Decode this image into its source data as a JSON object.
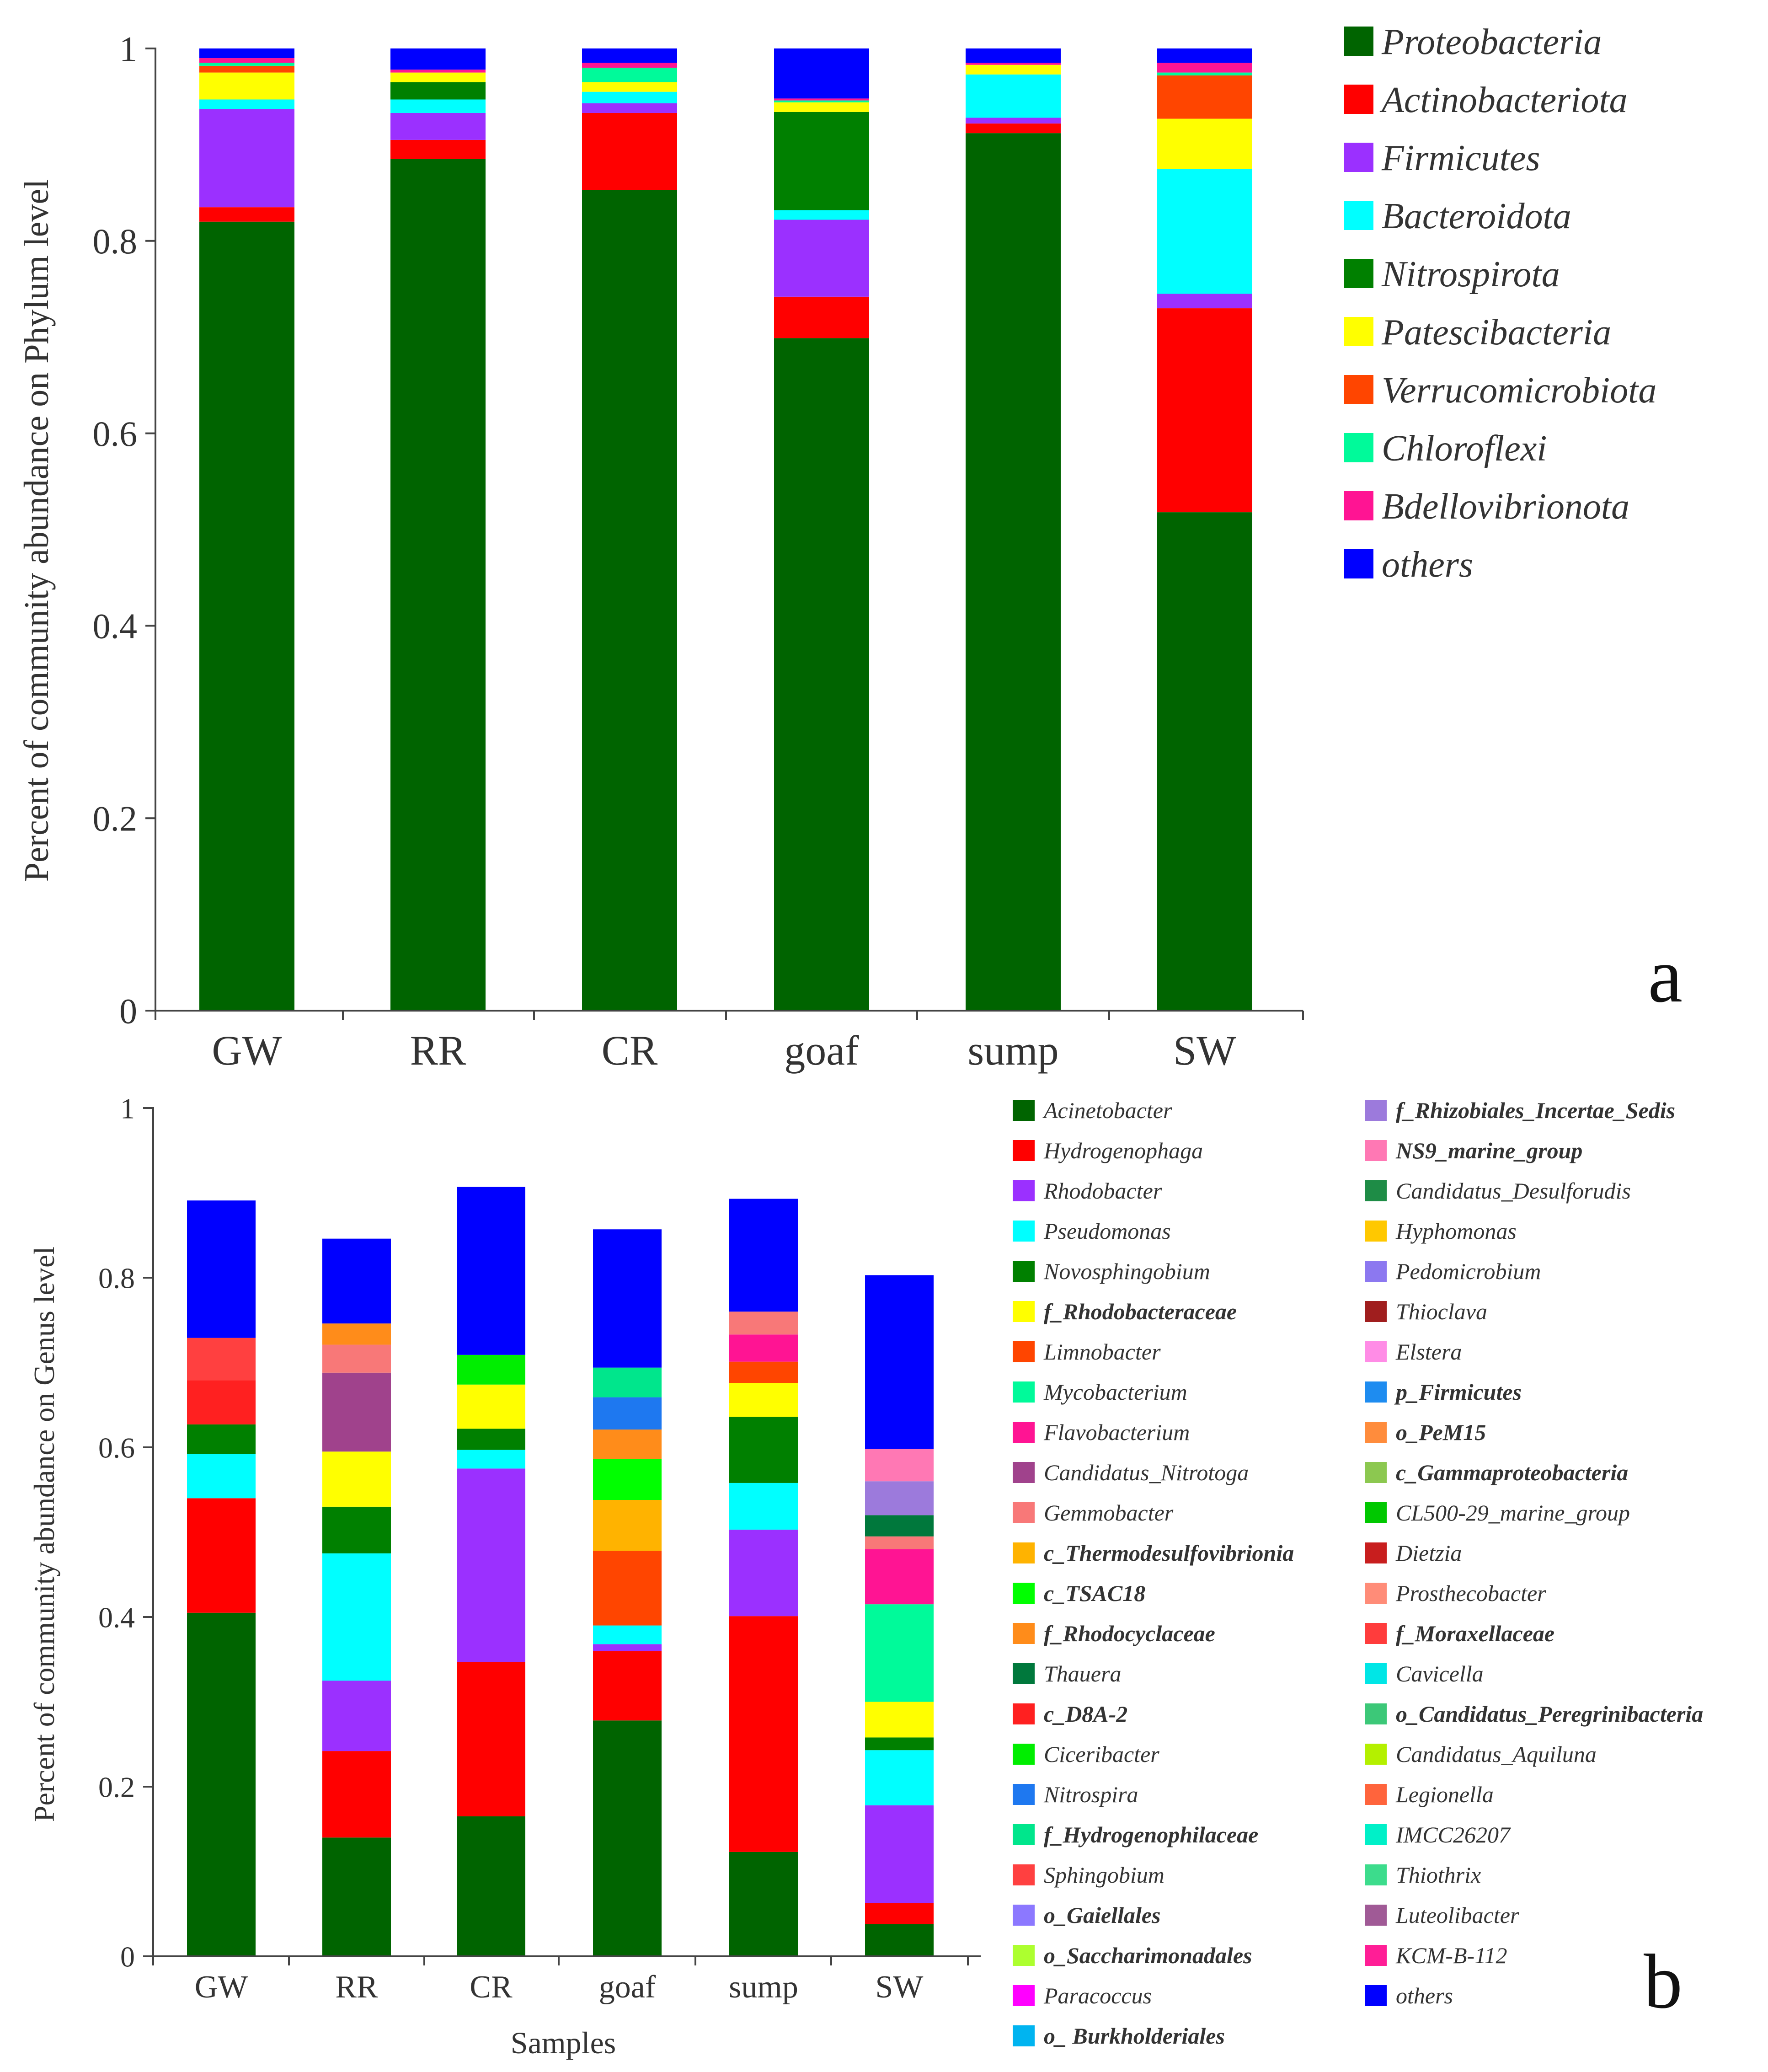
{
  "chart_data": [
    {
      "type": "stacked-bar",
      "panel_label": "a",
      "ylabel": "Percent of community abundance on Phylum level",
      "xlabel": "",
      "ylim": [
        0,
        1
      ],
      "yticks": [
        "0",
        "0.2",
        "0.4",
        "0.6",
        "0.8",
        "1"
      ],
      "ytick_values": [
        0,
        0.2,
        0.4,
        0.6,
        0.8,
        1
      ],
      "categories": [
        "GW",
        "RR",
        "CR",
        "goaf",
        "sump",
        "SW"
      ],
      "legend_position": "right",
      "series": [
        {
          "name": "Proteobacteria",
          "color": "#006400",
          "values": [
            0.82,
            0.885,
            0.853,
            0.699,
            0.912,
            0.518
          ]
        },
        {
          "name": "Actinobacteriota",
          "color": "#FF0000",
          "values": [
            0.015,
            0.02,
            0.08,
            0.043,
            0.01,
            0.212
          ]
        },
        {
          "name": "Firmicutes",
          "color": "#9B30FF",
          "values": [
            0.102,
            0.028,
            0.01,
            0.08,
            0.006,
            0.015
          ]
        },
        {
          "name": "Bacteroidota",
          "color": "#00FFFF",
          "values": [
            0.01,
            0.014,
            0.012,
            0.01,
            0.045,
            0.13
          ]
        },
        {
          "name": "Nitrospirota",
          "color": "#008000",
          "values": [
            0.0,
            0.018,
            0.0,
            0.102,
            0.0,
            0.0
          ]
        },
        {
          "name": "Patescibacteria",
          "color": "#FFFF00",
          "values": [
            0.028,
            0.01,
            0.01,
            0.01,
            0.01,
            0.052
          ]
        },
        {
          "name": "Verrucomicrobiota",
          "color": "#FF4500",
          "values": [
            0.007,
            0.0,
            0.0,
            0.0,
            0.0,
            0.045
          ]
        },
        {
          "name": "Chloroflexi",
          "color": "#00FA9A",
          "values": [
            0.003,
            0.0,
            0.015,
            0.002,
            0.0,
            0.003
          ]
        },
        {
          "name": "Bdellovibrionota",
          "color": "#FF1493",
          "values": [
            0.005,
            0.003,
            0.005,
            0.002,
            0.002,
            0.01
          ]
        },
        {
          "name": "others",
          "color": "#0000FF",
          "values": [
            0.01,
            0.022,
            0.015,
            0.052,
            0.015,
            0.015
          ]
        }
      ]
    },
    {
      "type": "stacked-bar",
      "panel_label": "b",
      "ylabel": "Percent of community abundance on Genus level",
      "xlabel": "Samples",
      "ylim": [
        0,
        1
      ],
      "yticks": [
        "0",
        "0.2",
        "0.4",
        "0.6",
        "0.8",
        "1"
      ],
      "ytick_values": [
        0,
        0.2,
        0.4,
        0.6,
        0.8,
        1
      ],
      "categories": [
        "GW",
        "RR",
        "CR",
        "goaf",
        "sump",
        "SW"
      ],
      "legend_position": "right",
      "series": [
        {
          "name": "Acinetobacter",
          "color": "#006400",
          "bold": false,
          "values": [
            0.405,
            0.14,
            0.165,
            0.278,
            0.123,
            0.038
          ]
        },
        {
          "name": "Hydrogenophaga",
          "color": "#FF0000",
          "bold": false,
          "values": [
            0.135,
            0.102,
            0.182,
            0.082,
            0.278,
            0.025
          ]
        },
        {
          "name": "Rhodobacter",
          "color": "#9B30FF",
          "bold": false,
          "values": [
            0.0,
            0.083,
            0.228,
            0.008,
            0.102,
            0.115
          ]
        },
        {
          "name": "Pseudomonas",
          "color": "#00FFFF",
          "bold": false,
          "values": [
            0.052,
            0.15,
            0.022,
            0.022,
            0.055,
            0.065
          ]
        },
        {
          "name": "Novosphingobium",
          "color": "#008000",
          "bold": false,
          "values": [
            0.035,
            0.055,
            0.025,
            0.0,
            0.078,
            0.015
          ]
        },
        {
          "name": "f_Rhodobacteraceae",
          "color": "#FFFF00",
          "bold": true,
          "values": [
            0.0,
            0.065,
            0.052,
            0.0,
            0.04,
            0.042
          ]
        },
        {
          "name": "Limnobacter",
          "color": "#FF4500",
          "bold": false,
          "values": [
            0.0,
            0.0,
            0.0,
            0.088,
            0.025,
            0.0
          ]
        },
        {
          "name": "Mycobacterium",
          "color": "#00FA9A",
          "bold": false,
          "values": [
            0.0,
            0.0,
            0.0,
            0.0,
            0.0,
            0.115
          ]
        },
        {
          "name": "Flavobacterium",
          "color": "#FF1493",
          "bold": false,
          "values": [
            0.0,
            0.0,
            0.0,
            0.0,
            0.032,
            0.065
          ]
        },
        {
          "name": "Candidatus_Nitrotoga",
          "color": "#A0428C",
          "bold": false,
          "values": [
            0.0,
            0.093,
            0.0,
            0.0,
            0.0,
            0.0
          ]
        },
        {
          "name": "Gemmobacter",
          "color": "#F87878",
          "bold": false,
          "values": [
            0.0,
            0.033,
            0.0,
            0.0,
            0.027,
            0.015
          ]
        },
        {
          "name": "c_Thermodesulfovibrionia",
          "color": "#FFB300",
          "bold": true,
          "values": [
            0.0,
            0.0,
            0.0,
            0.06,
            0.0,
            0.0
          ]
        },
        {
          "name": "c_TSAC18",
          "color": "#00FF00",
          "bold": true,
          "values": [
            0.0,
            0.0,
            0.0,
            0.048,
            0.0,
            0.0
          ]
        },
        {
          "name": "f_Rhodocyclaceae",
          "color": "#FF8C1A",
          "bold": true,
          "values": [
            0.0,
            0.025,
            0.0,
            0.035,
            0.0,
            0.0
          ]
        },
        {
          "name": "Thauera",
          "color": "#00783C",
          "bold": false,
          "values": [
            0.0,
            0.0,
            0.0,
            0.0,
            0.0,
            0.025
          ]
        },
        {
          "name": "c_D8A-2",
          "color": "#FF2020",
          "bold": true,
          "values": [
            0.052,
            0.0,
            0.0,
            0.0,
            0.0,
            0.0
          ]
        },
        {
          "name": "Ciceribacter",
          "color": "#00EE00",
          "bold": false,
          "values": [
            0.0,
            0.0,
            0.035,
            0.0,
            0.0,
            0.0
          ]
        },
        {
          "name": "Nitrospira",
          "color": "#1E78F0",
          "bold": false,
          "values": [
            0.0,
            0.0,
            0.0,
            0.038,
            0.0,
            0.0
          ]
        },
        {
          "name": "f_Hydrogenophilaceae",
          "color": "#00E68C",
          "bold": true,
          "values": [
            0.0,
            0.0,
            0.0,
            0.035,
            0.0,
            0.0
          ]
        },
        {
          "name": "Sphingobium",
          "color": "#FF4040",
          "bold": false,
          "values": [
            0.05,
            0.0,
            0.0,
            0.0,
            0.0,
            0.0
          ]
        },
        {
          "name": "o_Gaiellales",
          "color": "#8C78FF",
          "bold": true,
          "values": [
            0.0,
            0.0,
            0.0,
            0.0,
            0.0,
            0.0
          ]
        },
        {
          "name": "o_Saccharimonadales",
          "color": "#ADFF2F",
          "bold": true,
          "values": [
            0.0,
            0.0,
            0.0,
            0.0,
            0.0,
            0.0
          ]
        },
        {
          "name": "Paracoccus",
          "color": "#FF00FF",
          "bold": false,
          "values": [
            0.0,
            0.0,
            0.0,
            0.0,
            0.0,
            0.0
          ]
        },
        {
          "name": "o_ Burkholderiales",
          "color": "#00B4F0",
          "bold": true,
          "values": [
            0.0,
            0.0,
            0.0,
            0.0,
            0.0,
            0.0
          ]
        },
        {
          "name": "f_Rhizobiales_Incertae_Sedis",
          "color": "#9C7ADC",
          "bold": true,
          "values": [
            0.0,
            0.0,
            0.0,
            0.0,
            0.0,
            0.04
          ]
        },
        {
          "name": "NS9_marine_group",
          "color": "#FF78B4",
          "bold": true,
          "values": [
            0.0,
            0.0,
            0.0,
            0.0,
            0.0,
            0.038
          ]
        },
        {
          "name": "Candidatus_Desulforudis",
          "color": "#1E8C46",
          "bold": false,
          "values": [
            0.0,
            0.0,
            0.0,
            0.0,
            0.0,
            0.0
          ]
        },
        {
          "name": "Hyphomonas",
          "color": "#FFC800",
          "bold": false,
          "values": [
            0.0,
            0.0,
            0.0,
            0.0,
            0.0,
            0.0
          ]
        },
        {
          "name": "Pedomicrobium",
          "color": "#8C78F0",
          "bold": false,
          "values": [
            0.0,
            0.0,
            0.0,
            0.0,
            0.0,
            0.0
          ]
        },
        {
          "name": "Thioclava",
          "color": "#A01E1E",
          "bold": false,
          "values": [
            0.0,
            0.0,
            0.0,
            0.0,
            0.0,
            0.0
          ]
        },
        {
          "name": "Elstera",
          "color": "#FF8CE6",
          "bold": false,
          "values": [
            0.0,
            0.0,
            0.0,
            0.0,
            0.0,
            0.0
          ]
        },
        {
          "name": "p_Firmicutes",
          "color": "#1E8CF0",
          "bold": true,
          "values": [
            0.0,
            0.0,
            0.0,
            0.0,
            0.0,
            0.0
          ]
        },
        {
          "name": "o_PeM15",
          "color": "#FF8C3C",
          "bold": true,
          "values": [
            0.0,
            0.0,
            0.0,
            0.0,
            0.0,
            0.0
          ]
        },
        {
          "name": "c_Gammaproteobacteria",
          "color": "#8CC850",
          "bold": true,
          "values": [
            0.0,
            0.0,
            0.0,
            0.0,
            0.0,
            0.0
          ]
        },
        {
          "name": "CL500-29_marine_group",
          "color": "#00C800",
          "bold": false,
          "values": [
            0.0,
            0.0,
            0.0,
            0.0,
            0.0,
            0.0
          ]
        },
        {
          "name": "Dietzia",
          "color": "#C81E1E",
          "bold": false,
          "values": [
            0.0,
            0.0,
            0.0,
            0.0,
            0.0,
            0.0
          ]
        },
        {
          "name": "Prosthecobacter",
          "color": "#FF8C78",
          "bold": false,
          "values": [
            0.0,
            0.0,
            0.0,
            0.0,
            0.0,
            0.0
          ]
        },
        {
          "name": "f_Moraxellaceae",
          "color": "#FF3C3C",
          "bold": true,
          "values": [
            0.0,
            0.0,
            0.0,
            0.0,
            0.0,
            0.0
          ]
        },
        {
          "name": "Cavicella",
          "color": "#00E6E6",
          "bold": false,
          "values": [
            0.0,
            0.0,
            0.0,
            0.0,
            0.0,
            0.0
          ]
        },
        {
          "name": "o_Candidatus_Peregrinibacteria",
          "color": "#3CC878",
          "bold": true,
          "values": [
            0.0,
            0.0,
            0.0,
            0.0,
            0.0,
            0.0
          ]
        },
        {
          "name": "Candidatus_Aquiluna",
          "color": "#B4F000",
          "bold": false,
          "values": [
            0.0,
            0.0,
            0.0,
            0.0,
            0.0,
            0.0
          ]
        },
        {
          "name": "Legionella",
          "color": "#FF643C",
          "bold": false,
          "values": [
            0.0,
            0.0,
            0.0,
            0.0,
            0.0,
            0.0
          ]
        },
        {
          "name": "IMCC26207",
          "color": "#00F0C8",
          "bold": false,
          "values": [
            0.0,
            0.0,
            0.0,
            0.0,
            0.0,
            0.0
          ]
        },
        {
          "name": "Thiothrix",
          "color": "#3CDC8C",
          "bold": false,
          "values": [
            0.0,
            0.0,
            0.0,
            0.0,
            0.0,
            0.0
          ]
        },
        {
          "name": "Luteolibacter",
          "color": "#A05A96",
          "bold": false,
          "values": [
            0.0,
            0.0,
            0.0,
            0.0,
            0.0,
            0.0
          ]
        },
        {
          "name": "KCM-B-112",
          "color": "#FF1E96",
          "bold": false,
          "values": [
            0.0,
            0.0,
            0.0,
            0.0,
            0.0,
            0.0
          ]
        },
        {
          "name": "others",
          "color": "#0000FF",
          "bold": false,
          "values": [
            0.162,
            0.1,
            0.198,
            0.163,
            0.133,
            0.205
          ]
        }
      ]
    }
  ]
}
